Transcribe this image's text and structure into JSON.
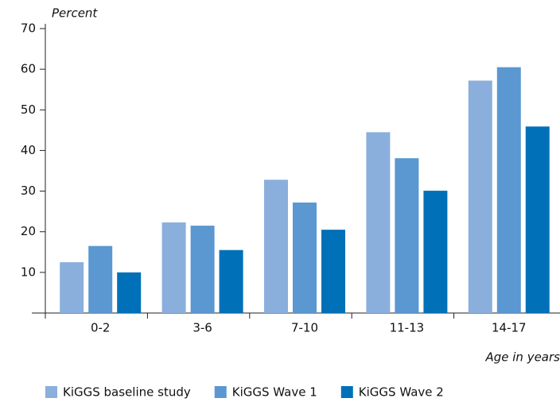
{
  "chart_data": {
    "type": "bar",
    "y_label": "Percent",
    "x_label": "Age in years",
    "categories": [
      "0-2",
      "3-6",
      "7-10",
      "11-13",
      "14-17"
    ],
    "series": [
      {
        "name": "KiGGS baseline study",
        "color": "#8aafdc",
        "values": [
          12.5,
          22.3,
          32.8,
          44.5,
          57.2
        ]
      },
      {
        "name": "KiGGS Wave 1",
        "color": "#5b97d1",
        "values": [
          16.5,
          21.5,
          27.2,
          38.1,
          60.5
        ]
      },
      {
        "name": "KiGGS Wave 2",
        "color": "#0070b8",
        "values": [
          10.0,
          15.5,
          20.5,
          30.1,
          45.9
        ]
      }
    ],
    "ylim": [
      0,
      70
    ],
    "yticks": [
      10,
      20,
      30,
      40,
      50,
      60,
      70
    ],
    "grid": false
  }
}
